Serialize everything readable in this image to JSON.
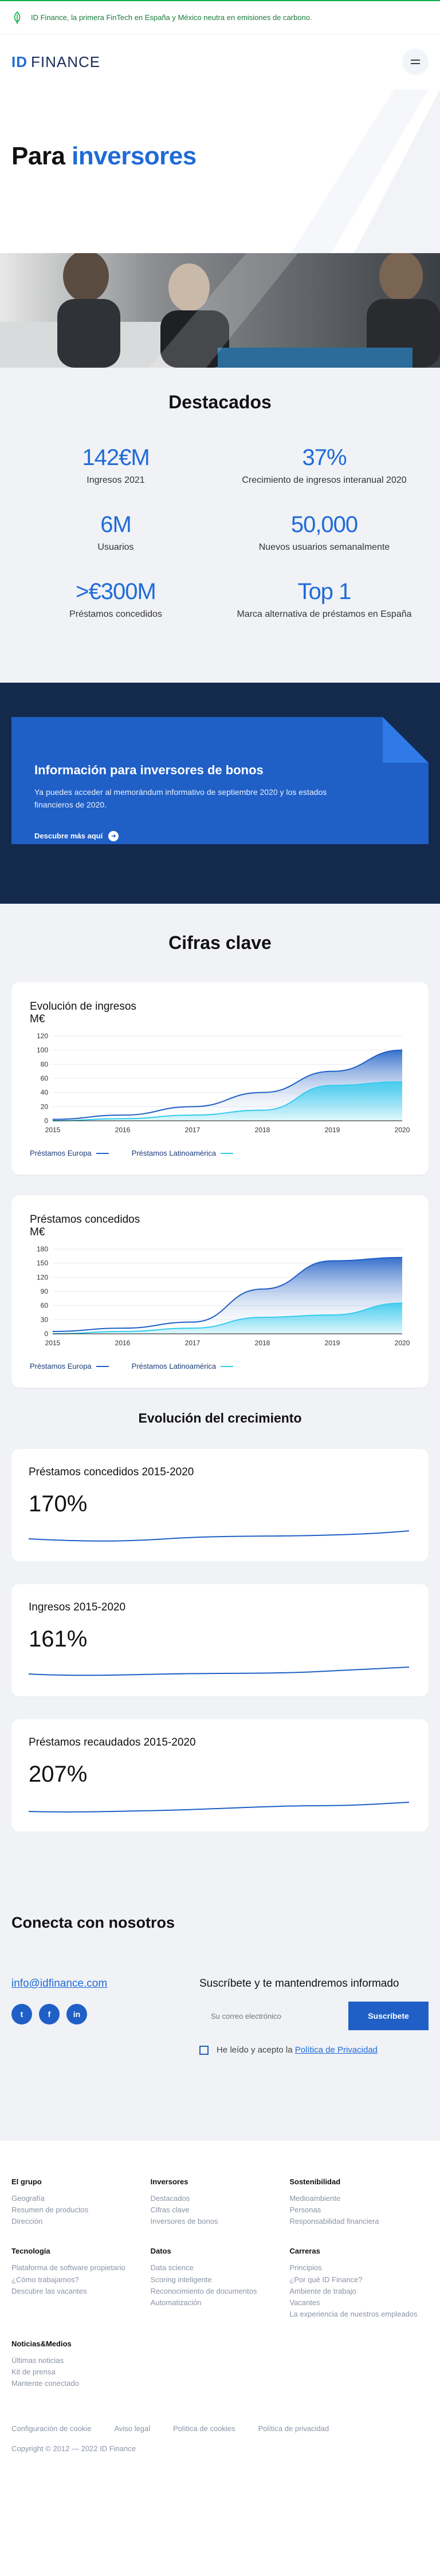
{
  "announcement": {
    "text": "ID Finance, la primera FinTech en España y México neutra en emisiones de carbono.",
    "icon": "leaf-icon"
  },
  "header": {
    "logo_id": "ID",
    "logo_word": "FINANCE",
    "menu_icon": "hamburger-icon"
  },
  "hero": {
    "title_plain": "Para",
    "title_accent": "inversores"
  },
  "highlights": {
    "title": "Destacados",
    "items": [
      {
        "value": "142€M",
        "label": "Ingresos 2021"
      },
      {
        "value": "37%",
        "label": "Crecimiento de ingresos interanual 2020"
      },
      {
        "value": "6M",
        "label": "Usuarios"
      },
      {
        "value": "50,000",
        "label": "Nuevos usuarios semanalmente"
      },
      {
        "value": ">€300M",
        "label": "Préstamos concedidos"
      },
      {
        "value": "Top 1",
        "label": "Marca alternativa de préstamos en España"
      }
    ]
  },
  "bonds": {
    "title": "Información para inversores de bonos",
    "text": "Ya puedes acceder al memorándum informativo de septiembre 2020 y los estados financieros de 2020.",
    "cta": "Descubre más aquí"
  },
  "key_figures": {
    "title": "Cifras clave"
  },
  "chart_data": [
    {
      "type": "area",
      "title": "Evolución de ingresos",
      "ylabel": "M€",
      "x": [
        "2015",
        "2016",
        "2017",
        "2018",
        "2019",
        "2020"
      ],
      "ylim": [
        0,
        120
      ],
      "yticks": [
        0,
        20,
        40,
        60,
        80,
        100,
        120
      ],
      "series": [
        {
          "name": "Préstamos Europa",
          "values": [
            2,
            8,
            20,
            40,
            70,
            100
          ],
          "color": "#1f5fc6"
        },
        {
          "name": "Préstamos Latinoamérica",
          "values": [
            0,
            3,
            8,
            15,
            50,
            55
          ],
          "color": "#33ccee"
        }
      ]
    },
    {
      "type": "area",
      "title": "Préstamos concedidos",
      "ylabel": "M€",
      "x": [
        "2015",
        "2016",
        "2017",
        "2018",
        "2019",
        "2020"
      ],
      "ylim": [
        0,
        180
      ],
      "yticks": [
        0,
        30,
        60,
        90,
        120,
        150,
        180
      ],
      "series": [
        {
          "name": "Préstamos Europa",
          "values": [
            5,
            12,
            25,
            95,
            155,
            162
          ],
          "color": "#1f5fc6"
        },
        {
          "name": "Préstamos Latinoamérica",
          "values": [
            0,
            5,
            12,
            35,
            40,
            65
          ],
          "color": "#33ccee"
        }
      ]
    }
  ],
  "growth": {
    "title": "Evolución del crecimiento",
    "cards": [
      {
        "title": "Préstamos concedidos 2015-2020",
        "value": "170%"
      },
      {
        "title": "Ingresos 2015-2020",
        "value": "161%"
      },
      {
        "title": "Préstamos recaudados 2015-2020",
        "value": "207%"
      }
    ]
  },
  "connect": {
    "title": "Conecta con nosotros",
    "email": "info@idfinance.com",
    "socials": [
      "twitter-icon",
      "facebook-icon",
      "linkedin-icon"
    ],
    "social_glyphs": [
      "t",
      "f",
      "in"
    ],
    "subscribe_title": "Suscríbete y te mantendremos informado",
    "email_placeholder": "Su correo electrónico",
    "subscribe_button": "Suscríbete",
    "consent_text": "He leído y acepto la",
    "privacy_link": "Política de Privacidad"
  },
  "footer": {
    "columns": [
      {
        "title": "El grupo",
        "links": [
          "Geografía",
          "Resumen de productos",
          "Dirección"
        ]
      },
      {
        "title": "Inversores",
        "links": [
          "Destacados",
          "Cifras clave",
          "Inversores de bonos"
        ]
      },
      {
        "title": "Sostenibilidad",
        "links": [
          "Medioambiente",
          "Personas",
          "Responsabilidad financiera"
        ]
      },
      {
        "title": "Tecnología",
        "links": [
          "Plataforma de software propietario",
          "¿Cómo trabajamos?",
          "Descubre las vacantes"
        ]
      },
      {
        "title": "Datos",
        "links": [
          "Data science",
          "Scoring inteligente",
          "Reconocimiento de documentos",
          "Automatización"
        ]
      },
      {
        "title": "Carreras",
        "links": [
          "Principios",
          "¿Por qué ID Finance?",
          "Ambiente de trabajo",
          "Vacantes",
          "La experiencia de nuestros empleados"
        ]
      },
      {
        "title": "Noticias&Medios",
        "links": [
          "Últimas noticias",
          "Kit de prensa",
          "Mantente conectado"
        ]
      }
    ],
    "bottom_links": [
      "Configuración de cookie",
      "Aviso legal",
      "Política de cookies",
      "Política de privacidad"
    ],
    "copyright": "Copyright © 2012 — 2022 ID Finance"
  }
}
